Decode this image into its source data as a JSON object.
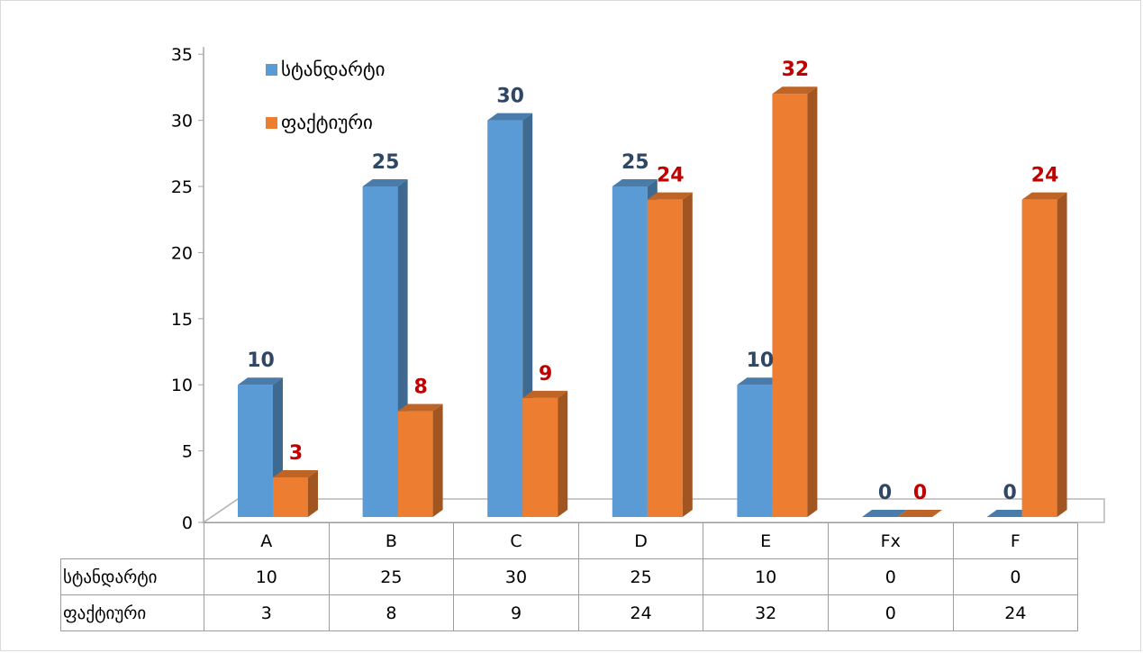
{
  "chart_data": {
    "type": "bar",
    "categories": [
      "A",
      "B",
      "C",
      "D",
      "E",
      "Fx",
      "F"
    ],
    "series": [
      {
        "name": "სტანდარტი",
        "values": [
          10,
          25,
          30,
          25,
          10,
          0,
          0
        ],
        "color": "#5b9bd5",
        "label_color": "#2f4764"
      },
      {
        "name": "ფაქტიური",
        "values": [
          3,
          8,
          9,
          24,
          32,
          0,
          24
        ],
        "color": "#ed7d31",
        "label_color": "#c00000"
      }
    ],
    "yticks": [
      "0",
      "5",
      "10",
      "15",
      "20",
      "25",
      "30",
      "35"
    ],
    "ylim": [
      0,
      35
    ],
    "style": "3d-clustered-column",
    "legend_position": "top-left",
    "data_table": true
  }
}
